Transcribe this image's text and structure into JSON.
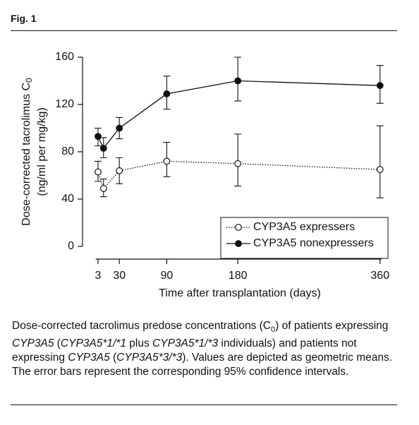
{
  "figure_label": "Fig. 1",
  "chart_data": {
    "type": "line",
    "ylabel": "Dose-corrected tacrolimus C",
    "ylabel_subscript": "0",
    "ylabel_units": "(ng/ml per mg/kg)",
    "xlabel": "Time after transplantation (days)",
    "x": [
      3,
      10,
      30,
      90,
      180,
      360
    ],
    "xlim": [
      0,
      362
    ],
    "xticks": [
      3,
      30,
      90,
      180,
      360
    ],
    "ylim": [
      0,
      160
    ],
    "yticks": [
      0,
      40,
      80,
      120,
      160
    ],
    "legend": "lower right",
    "series": [
      {
        "name": "CYP3A5 expressers",
        "color": "#111111",
        "marker_fill": "#ffffff",
        "line_style": "dotted",
        "values": [
          63,
          49,
          64,
          72,
          70,
          65
        ],
        "error_low": [
          55,
          42,
          53,
          59,
          51,
          41
        ],
        "error_high": [
          72,
          57,
          75,
          88,
          95,
          102
        ]
      },
      {
        "name": "CYP3A5 nonexpressers",
        "color": "#111111",
        "marker_fill": "#111111",
        "line_style": "solid",
        "values": [
          93,
          83,
          100,
          129,
          140,
          136
        ],
        "error_low": [
          85,
          75,
          91,
          116,
          123,
          121
        ],
        "error_high": [
          100,
          92,
          109,
          144,
          160,
          153
        ]
      }
    ]
  },
  "caption": [
    {
      "text": "Dose-corrected tacrolimus predose concentrations (C",
      "style": "normal"
    },
    {
      "text": "0",
      "style": "sub"
    },
    {
      "text": ") of patients expressing ",
      "style": "normal"
    },
    {
      "text": "CYP3A5",
      "style": "italic"
    },
    {
      "text": " (",
      "style": "normal"
    },
    {
      "text": "CYP3A5*1/*1",
      "style": "italic"
    },
    {
      "text": " plus ",
      "style": "normal"
    },
    {
      "text": "CYP3A5*1/*3",
      "style": "italic"
    },
    {
      "text": " individuals) and patients not expressing ",
      "style": "normal"
    },
    {
      "text": "CYP3A5",
      "style": "italic"
    },
    {
      "text": " (",
      "style": "normal"
    },
    {
      "text": "CYP3A5*3/*3",
      "style": "italic"
    },
    {
      "text": "). Values are depicted as geometric means. The error bars represent the corresponding 95% confidence intervals.",
      "style": "normal"
    }
  ]
}
